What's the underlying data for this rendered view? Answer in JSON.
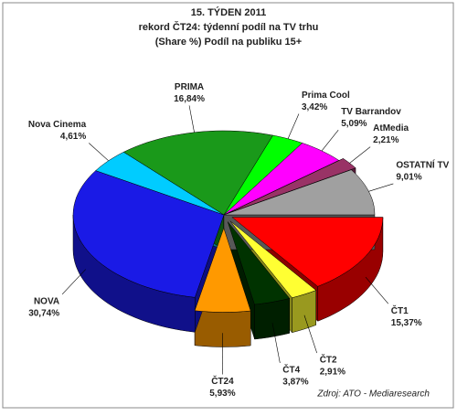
{
  "chart_data": {
    "type": "pie3d",
    "title": "15. TÝDEN 2011",
    "subtitle": "rekord ČT24: týdenní podíl na TV trhu",
    "subtitle2": "(Share %) Podíl na publiku 15+",
    "source": "Zdroj: ATO - Mediaresearch",
    "categories": [
      "ČT1",
      "ČT2",
      "ČT4",
      "ČT24",
      "NOVA",
      "Nova Cinema",
      "PRIMA",
      "Prima Cool",
      "TV Barrandov",
      "AtMedia",
      "OSTATNÍ TV"
    ],
    "values": [
      15.37,
      2.91,
      3.87,
      5.93,
      30.74,
      4.61,
      16.84,
      3.42,
      5.09,
      2.21,
      9.01
    ],
    "value_labels": [
      "15,37%",
      "2,91%",
      "3,87%",
      "5,93%",
      "30,74%",
      "4,61%",
      "16,84%",
      "3,42%",
      "5,09%",
      "2,21%",
      "9,01%"
    ],
    "colors": [
      "#ff0000",
      "#ffff33",
      "#003300",
      "#ff9900",
      "#1a1ae6",
      "#00ccff",
      "#1a991a",
      "#00ff00",
      "#ff00ff",
      "#993366",
      "#a0a0a0"
    ]
  }
}
